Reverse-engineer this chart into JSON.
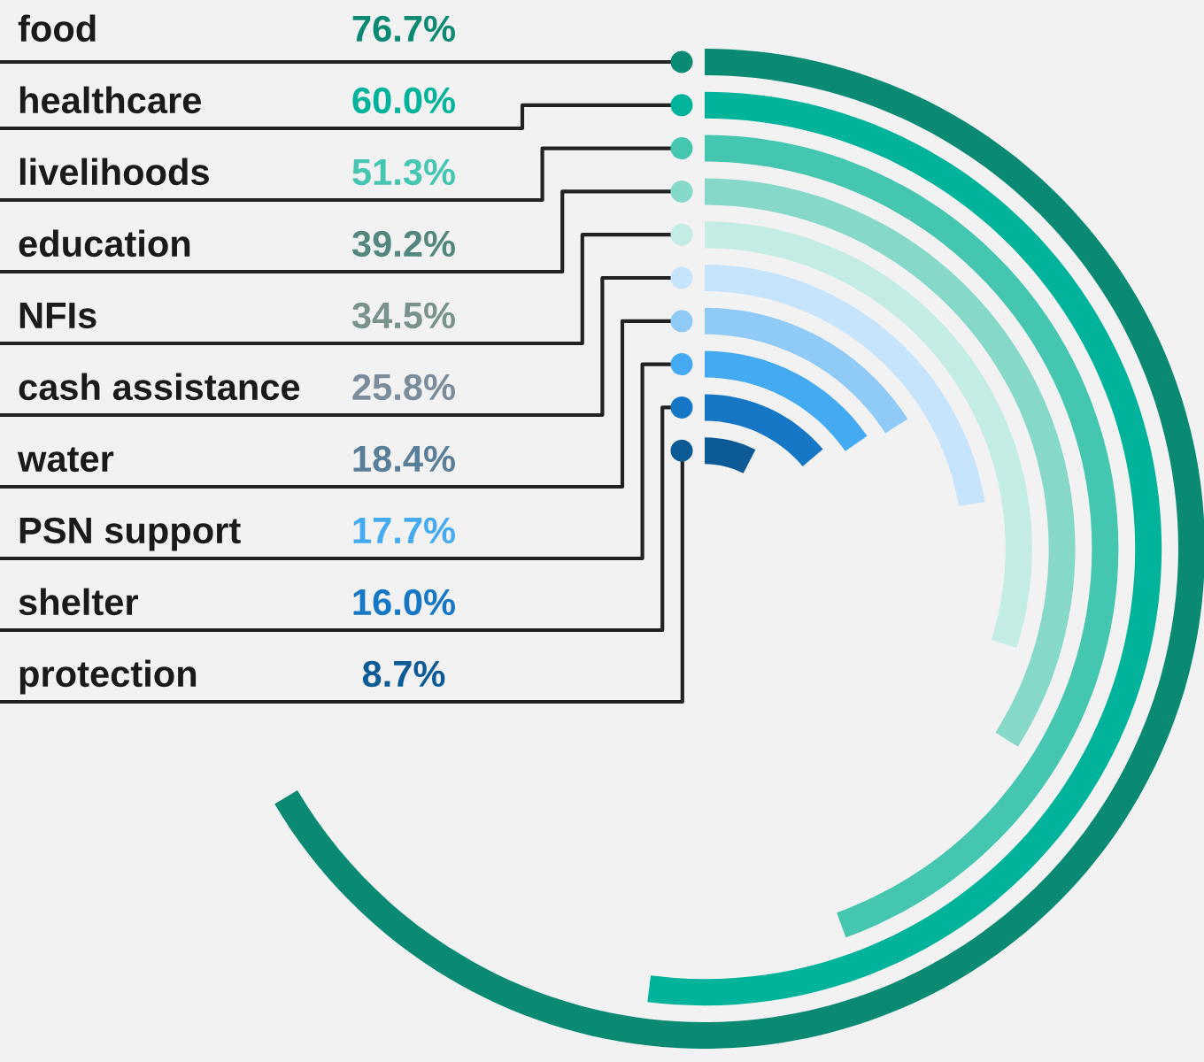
{
  "chart_data": {
    "type": "other",
    "categories": [
      "food",
      "healthcare",
      "livelihoods",
      "education",
      "NFIs",
      "cash assistance",
      "water",
      "PSN support",
      "shelter",
      "protection"
    ],
    "values": [
      76.7,
      60.0,
      51.3,
      39.2,
      34.5,
      25.8,
      18.4,
      17.7,
      16.0,
      8.7
    ],
    "value_labels": [
      "76.7%",
      "60.0%",
      "51.3%",
      "39.2%",
      "34.5%",
      "25.8%",
      "18.4%",
      "17.7%",
      "16.0%",
      "8.7%"
    ],
    "colors": [
      "#0a8a72",
      "#00b39a",
      "#45c6b1",
      "#86d9c9",
      "#c3ece4",
      "#c6e4fb",
      "#90cbf8",
      "#44abf2",
      "#1577c6",
      "#0c5a96"
    ]
  }
}
